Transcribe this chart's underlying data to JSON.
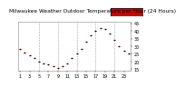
{
  "title": "Milwaukee Weather Outdoor Temperature per Hour (24 Hours)",
  "hours": [
    1,
    2,
    3,
    4,
    5,
    6,
    7,
    8,
    9,
    10,
    11,
    12,
    13,
    14,
    15,
    16,
    17,
    18,
    19,
    20,
    21,
    22,
    23,
    24
  ],
  "temps": [
    28,
    26,
    24,
    22,
    20,
    19,
    18,
    17,
    16,
    17,
    19,
    22,
    25,
    28,
    33,
    37,
    40,
    42,
    41,
    38,
    34,
    30,
    27,
    25
  ],
  "marker_color": "#cc0000",
  "bg_color": "#ffffff",
  "grid_color": "#999999",
  "text_color": "#000000",
  "ylim": [
    14,
    46
  ],
  "yticks": [
    15,
    20,
    25,
    30,
    35,
    40,
    45
  ],
  "ytick_labels": [
    "15",
    "20",
    "25",
    "30",
    "35",
    "40",
    "45"
  ],
  "legend_bar_color": "#cc0000",
  "title_fontsize": 4.2,
  "tick_fontsize": 3.5,
  "marker_size": 1.5,
  "xtick_positions": [
    1,
    3,
    5,
    7,
    9,
    11,
    13,
    15,
    17,
    19,
    21,
    23
  ],
  "xtick_labels": [
    "1",
    "3",
    "5",
    "7",
    "9",
    "11",
    "13",
    "15",
    "17",
    "19",
    "21",
    "23"
  ],
  "vgrid_positions": [
    5,
    9,
    13,
    17,
    21
  ]
}
